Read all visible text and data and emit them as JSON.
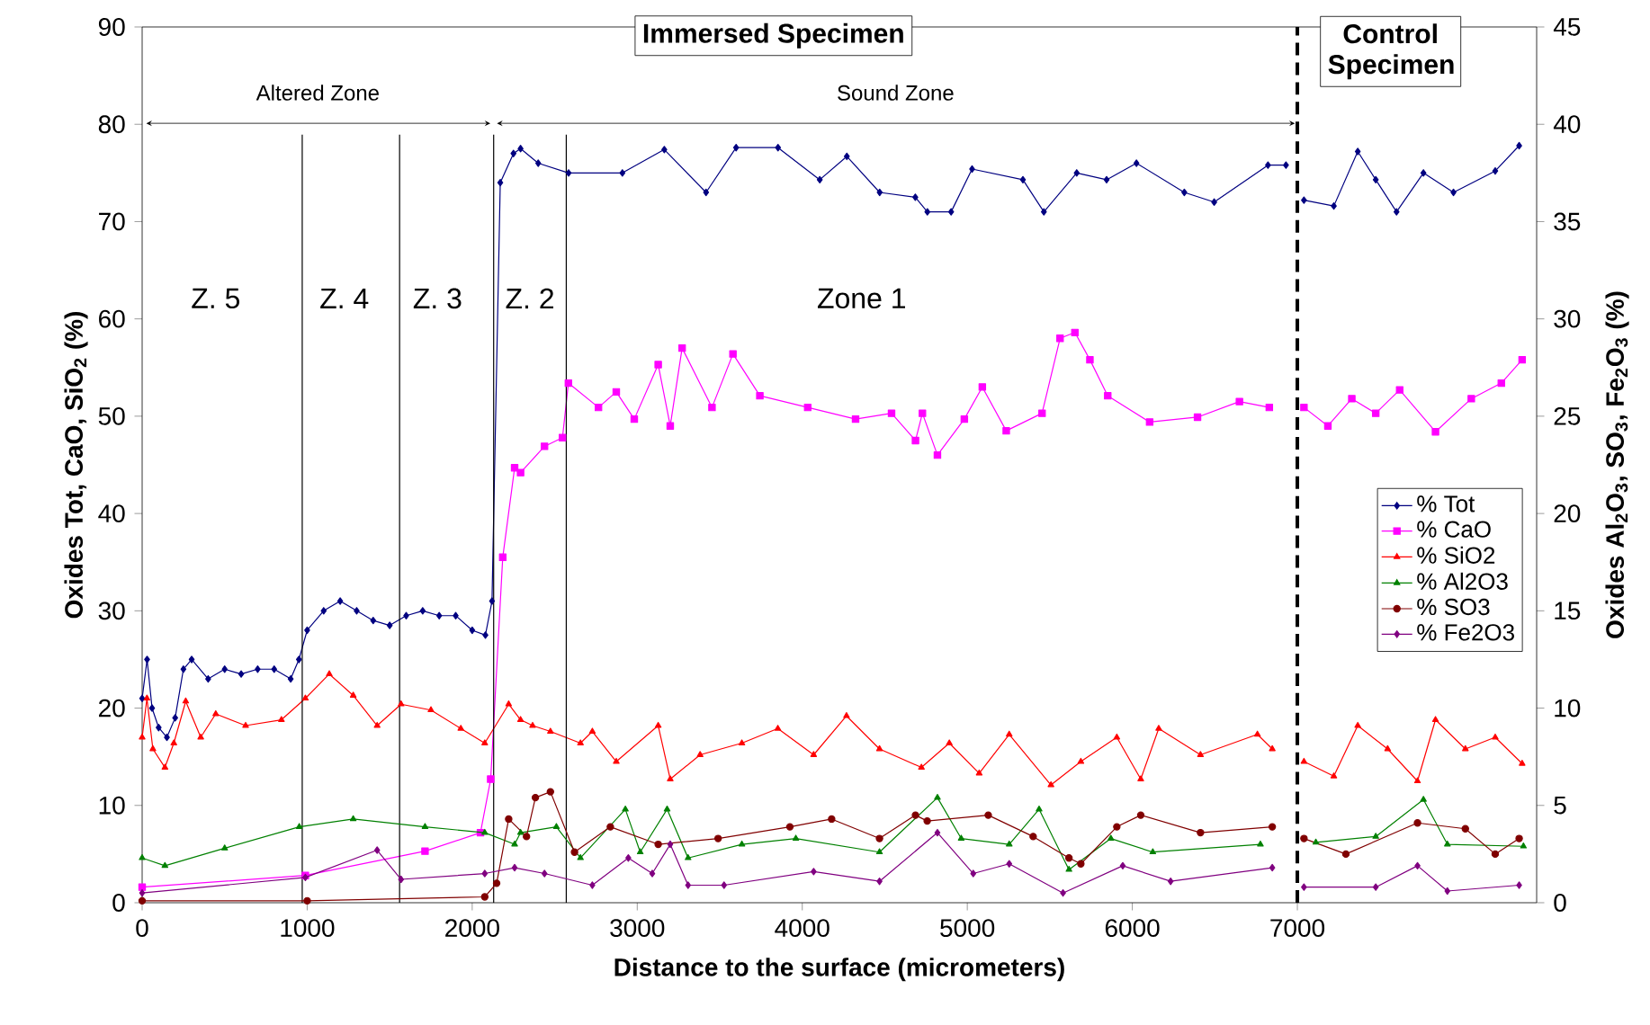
{
  "chart_data": {
    "type": "line",
    "xlabel": "Distance to the surface (micrometers)",
    "ylabel": "Oxides Tot, CaO, SiO$_{2}$ (%)",
    "y2label": "Oxides Al$_{2}$O$_{3}$, SO$_{3}$, Fe$_{2}$O$_{3}$ (%)",
    "xlim": [
      0,
      8450
    ],
    "xticks": [
      0,
      1000,
      2000,
      3000,
      4000,
      5000,
      6000,
      7000
    ],
    "ylim": [
      0,
      90
    ],
    "yticks": [
      0,
      10,
      20,
      30,
      40,
      50,
      60,
      70,
      80,
      90
    ],
    "y2lim": [
      0,
      45
    ],
    "y2ticks": [
      0,
      5,
      10,
      15,
      20,
      25,
      30,
      35,
      40,
      45
    ],
    "legend": "right",
    "series": [
      {
        "name": "% Tot",
        "color": "#000080",
        "marker": "diamond",
        "x": [
          0,
          30,
          60,
          100,
          150,
          200,
          250,
          300,
          400,
          500,
          600,
          700,
          800,
          900,
          950,
          1000,
          1100,
          1200,
          1300,
          1400,
          1500,
          1600,
          1700,
          1800,
          1900,
          2000,
          2080,
          2120,
          2170,
          2250,
          2293,
          2400,
          2584,
          2910,
          3164,
          3417,
          3599,
          3853,
          4106,
          4270,
          4469,
          4685,
          4758,
          4902,
          5029,
          5337,
          5464,
          5663,
          5844,
          6025,
          6315,
          6496,
          6822,
          6931,
          7000,
          7040,
          7221,
          7366,
          7475,
          7601,
          7764,
          7946,
          8199,
          8344
        ],
        "values": [
          21,
          25,
          20,
          18,
          17,
          19,
          24,
          25,
          23,
          24,
          23.5,
          24,
          24,
          23,
          25,
          28,
          30,
          31,
          30,
          29,
          28.5,
          29.5,
          30,
          29.5,
          29.5,
          28,
          27.5,
          31,
          74,
          77,
          77.5,
          76,
          75,
          75,
          77.4,
          73,
          77.6,
          77.6,
          74.3,
          76.7,
          73,
          72.5,
          71,
          71,
          75.4,
          74.3,
          71,
          75,
          74.3,
          76,
          73,
          72,
          75.8,
          75.8,
          null,
          72.2,
          71.6,
          77.2,
          74.3,
          71,
          75,
          73,
          75.2,
          77.8
        ]
      },
      {
        "name": "% CaO",
        "color": "#ff00ff",
        "marker": "square",
        "x": [
          0,
          989,
          1714,
          2050,
          2112,
          2185,
          2257,
          2293,
          2438,
          2547,
          2583,
          2765,
          2873,
          2982,
          3127,
          3200,
          3272,
          3453,
          3580,
          3743,
          4033,
          4323,
          4541,
          4686,
          4728,
          4819,
          4982,
          5091,
          5236,
          5453,
          5562,
          5652,
          5743,
          5851,
          6105,
          6395,
          6649,
          6830,
          7000,
          7040,
          7185,
          7330,
          7475,
          7620,
          7837,
          8054,
          8236,
          8362
        ],
        "values": [
          1.6,
          2.8,
          5.3,
          7.2,
          12.7,
          35.5,
          44.7,
          44.2,
          46.9,
          47.8,
          53.4,
          50.9,
          52.5,
          49.7,
          55.3,
          49,
          57,
          50.9,
          56.4,
          52.1,
          50.9,
          49.7,
          50.3,
          47.5,
          50.3,
          46,
          49.7,
          53,
          48.5,
          50.3,
          58,
          58.6,
          55.8,
          52.1,
          49.4,
          49.9,
          51.5,
          50.9,
          null,
          50.9,
          49,
          51.8,
          50.3,
          52.7,
          48.4,
          51.8,
          53.4,
          55.8
        ]
      },
      {
        "name": "% SiO2",
        "color": "#ff0000",
        "marker": "triangle",
        "x": [
          0,
          29,
          65,
          138,
          192,
          264,
          355,
          446,
          627,
          844,
          989,
          1134,
          1279,
          1424,
          1569,
          1750,
          1931,
          2076,
          2221,
          2293,
          2366,
          2474,
          2656,
          2728,
          2873,
          3127,
          3200,
          3381,
          3634,
          3852,
          4069,
          4268,
          4468,
          4722,
          4891,
          5072,
          5254,
          5507,
          5688,
          5906,
          6051,
          6160,
          6413,
          6758,
          6848,
          7000,
          7040,
          7221,
          7366,
          7547,
          7728,
          7837,
          8018,
          8199,
          8362
        ],
        "values": [
          17,
          21,
          15.8,
          13.9,
          16.4,
          20.7,
          17,
          19.4,
          18.2,
          18.8,
          21,
          23.5,
          21.3,
          18.2,
          20.4,
          19.8,
          17.9,
          16.4,
          20.4,
          18.8,
          18.2,
          17.6,
          16.4,
          17.6,
          14.5,
          18.2,
          12.7,
          15.2,
          16.4,
          17.9,
          15.2,
          19.2,
          15.8,
          13.9,
          16.4,
          13.3,
          17.3,
          12.1,
          14.5,
          17,
          12.7,
          17.9,
          15.2,
          17.3,
          15.8,
          null,
          14.5,
          13,
          18.2,
          15.8,
          12.5,
          18.8,
          15.8,
          17,
          14.3
        ]
      },
      {
        "name": "% Al2O3",
        "color": "#008000",
        "marker": "triangle",
        "axis": "y2",
        "x": [
          0,
          138,
          500,
          952,
          1279,
          1714,
          2076,
          2257,
          2293,
          2510,
          2656,
          2928,
          3018,
          3181,
          3308,
          3634,
          3961,
          4468,
          4819,
          4963,
          5254,
          5435,
          5616,
          5870,
          6124,
          6776,
          7000,
          7112,
          7475,
          7764,
          7909,
          8370
        ],
        "values": [
          2.3,
          1.9,
          2.8,
          3.9,
          4.3,
          3.9,
          3.6,
          3,
          3.6,
          3.9,
          2.3,
          4.8,
          2.6,
          4.8,
          2.3,
          3,
          3.3,
          2.6,
          5.4,
          3.3,
          3,
          4.8,
          1.7,
          3.3,
          2.6,
          3,
          null,
          3.1,
          3.4,
          5.3,
          3,
          2.9
        ]
      },
      {
        "name": "% SO3",
        "color": "#800000",
        "marker": "circle",
        "axis": "y2",
        "x": [
          0,
          1000,
          2076,
          2148,
          2221,
          2329,
          2383,
          2474,
          2620,
          2837,
          3127,
          3490,
          3925,
          4178,
          4468,
          4686,
          4757,
          5127,
          5399,
          5616,
          5688,
          5906,
          6051,
          6413,
          6848,
          7000,
          7040,
          7294,
          7728,
          8018,
          8199,
          8344
        ],
        "values": [
          0.1,
          0.1,
          0.3,
          1,
          4.3,
          3.4,
          5.4,
          5.7,
          2.6,
          3.9,
          3,
          3.3,
          3.9,
          4.3,
          3.3,
          4.5,
          4.2,
          4.5,
          3.4,
          2.3,
          2,
          3.9,
          4.5,
          3.6,
          3.9,
          null,
          3.3,
          2.5,
          4.1,
          3.8,
          2.5,
          3.3
        ]
      },
      {
        "name": "% Fe2O3",
        "color": "#800080",
        "marker": "diamond",
        "axis": "y2",
        "x": [
          0,
          989,
          1424,
          1569,
          2076,
          2257,
          2438,
          2728,
          2946,
          3091,
          3200,
          3308,
          3526,
          4069,
          4468,
          4819,
          5036,
          5254,
          5580,
          5942,
          6232,
          6848,
          7000,
          7040,
          7475,
          7728,
          7909,
          8344
        ],
        "values": [
          0.5,
          1.3,
          2.7,
          1.2,
          1.5,
          1.8,
          1.5,
          0.9,
          2.3,
          1.5,
          3,
          0.9,
          0.9,
          1.6,
          1.1,
          3.6,
          1.5,
          2,
          0.5,
          1.9,
          1.1,
          1.8,
          null,
          0.8,
          0.8,
          1.9,
          0.6,
          0.9
        ]
      }
    ],
    "ref_lines": [
      {
        "axis": "x",
        "value": 970,
        "line_style": "solid"
      },
      {
        "axis": "x",
        "value": 1560,
        "line_style": "solid"
      },
      {
        "axis": "x",
        "value": 2130,
        "line_style": "solid"
      },
      {
        "axis": "x",
        "value": 2570,
        "line_style": "solid"
      },
      {
        "axis": "x",
        "value": 7000,
        "line_style": "dashed"
      }
    ],
    "annotations": [
      "Immersed Specimen",
      "Control Specimen",
      "Z. 5",
      "Z. 4",
      "Z. 3",
      "Z. 2",
      "Zone 1",
      "Altered Zone",
      "Sound Zone"
    ]
  }
}
